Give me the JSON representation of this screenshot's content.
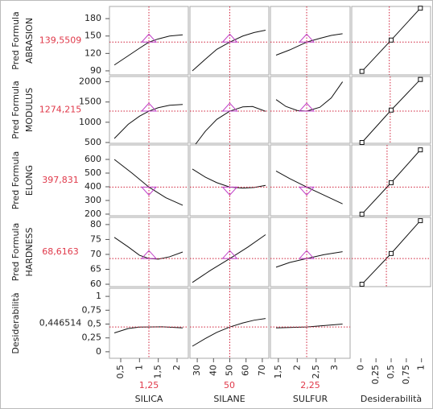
{
  "chart_data": {
    "type": "profiler",
    "factors": [
      {
        "name": "SILICA",
        "current": 1.25,
        "current_label": "1,25",
        "xlim": [
          0.2,
          2.3
        ],
        "xticks": [
          {
            "value": 0.5,
            "label": "0,5"
          },
          1,
          {
            "value": 1.5,
            "label": "1,5"
          },
          2
        ]
      },
      {
        "name": "SILANE",
        "current": 50,
        "xlim": [
          25.5,
          74
        ],
        "xticks": [
          30,
          40,
          50,
          60,
          70
        ]
      },
      {
        "name": "SULFUR",
        "current": 2.25,
        "current_label": "2,25",
        "xlim": [
          1.29,
          3.4
        ],
        "xticks": [
          {
            "value": 1.5,
            "label": "1,5"
          },
          2,
          {
            "value": 2.5,
            "label": "2,5"
          },
          3
        ]
      }
    ],
    "desirability_axis": {
      "name": "Desiderabilità",
      "xlim": [
        -0.15,
        1.15
      ],
      "xticks": [
        0,
        {
          "value": 0.25,
          "label": "0,25"
        },
        {
          "value": 0.5,
          "label": "0,5"
        },
        {
          "value": 0.75,
          "label": "0,75"
        },
        1
      ]
    },
    "responses": [
      {
        "name_lines": [
          "Pred Formula",
          "ABRASION"
        ],
        "current": 139.5509,
        "current_label": "139,5509",
        "marker": "triangle-up",
        "ylim": [
          83,
          201
        ],
        "yticks": [
          90,
          120,
          150,
          180
        ],
        "curves": [
          {
            "x": [
              0.33,
              0.7,
              1.0,
              1.25,
              1.5,
              1.8,
              2.15
            ],
            "y": [
              100,
              116,
              129,
              139.5,
              145,
              150,
              152
            ]
          },
          {
            "x": [
              27,
              35,
              42,
              50,
              58,
              65,
              72
            ],
            "y": [
              90,
              110,
              127,
              139.5,
              150,
              156,
              160
            ]
          },
          {
            "x": [
              1.44,
              1.8,
              2.25,
              2.6,
              2.9,
              3.2
            ],
            "y": [
              117,
              126,
              139.5,
              146,
              151,
              154
            ]
          }
        ],
        "desirability": {
          "x": [
            0.0183,
            0.5,
            0.9819
          ],
          "y": [
            89,
            143,
            198
          ]
        }
      },
      {
        "name_lines": [
          "Pred Formula",
          "MODULUS"
        ],
        "current": 1274.215,
        "current_label": "1274,215",
        "marker": "triangle-up",
        "ylim": [
          480,
          2130
        ],
        "yticks": [
          500,
          1000,
          1500,
          2000
        ],
        "curves": [
          {
            "x": [
              0.33,
              0.7,
              1.0,
              1.25,
              1.5,
              1.8,
              2.15
            ],
            "y": [
              600,
              950,
              1150,
              1274,
              1360,
              1420,
              1440
            ]
          },
          {
            "x": [
              29,
              35,
              42,
              50,
              58,
              64,
              72
            ],
            "y": [
              460,
              780,
              1070,
              1274,
              1380,
              1390,
              1270
            ]
          },
          {
            "x": [
              1.44,
              1.7,
              2.0,
              2.25,
              2.6,
              2.9,
              3.2
            ],
            "y": [
              1560,
              1390,
              1290,
              1274,
              1370,
              1600,
              2000
            ]
          }
        ],
        "desirability": {
          "x": [
            0.0183,
            0.5,
            0.9819
          ],
          "y": [
            500,
            1300,
            2057
          ]
        }
      },
      {
        "name_lines": [
          "Pred Formula",
          "ELONG"
        ],
        "current": 397.831,
        "current_label": "397,831",
        "marker": "triangle-down",
        "ylim": [
          188,
          706
        ],
        "yticks": [
          200,
          300,
          400,
          500,
          600
        ],
        "curves": [
          {
            "x": [
              0.33,
              0.8,
              1.25,
              1.7,
              2.15
            ],
            "y": [
              600,
              500,
              398,
              320,
              265
            ]
          },
          {
            "x": [
              27,
              35,
              42,
              50,
              58,
              65,
              72
            ],
            "y": [
              530,
              470,
              430,
              398,
              390,
              395,
              410
            ]
          },
          {
            "x": [
              1.44,
              1.8,
              2.25,
              2.7,
              3.2
            ],
            "y": [
              515,
              460,
              398,
              340,
              275
            ]
          }
        ],
        "desirability": {
          "x": [
            0.0183,
            0.5,
            0.9819
          ],
          "y": [
            200,
            430,
            670
          ]
        }
      },
      {
        "name_lines": [
          "Pred Formula",
          "HARDNESS"
        ],
        "current": 68.6163,
        "current_label": "68,6163",
        "marker": "triangle-up",
        "ylim": [
          59.2,
          82.4
        ],
        "yticks": [
          60,
          65,
          70,
          75,
          80
        ],
        "curves": [
          {
            "x": [
              0.33,
              0.7,
              1.0,
              1.25,
              1.5,
              1.8,
              2.15
            ],
            "y": [
              75.7,
              72.5,
              69.7,
              68.6,
              68.4,
              69.2,
              70.8
            ]
          },
          {
            "x": [
              27,
              38,
              50,
              61,
              72
            ],
            "y": [
              60.6,
              64.6,
              68.6,
              72.4,
              76.6
            ]
          },
          {
            "x": [
              1.44,
              1.8,
              2.25,
              2.7,
              3.2
            ],
            "y": [
              65.7,
              67.3,
              68.6,
              69.9,
              70.9
            ]
          }
        ],
        "desirability": {
          "x": [
            0.0183,
            0.5,
            0.9819
          ],
          "y": [
            60,
            70.3,
            81.3
          ]
        }
      },
      {
        "name_lines": [
          "Desiderabilità"
        ],
        "current": 0.446514,
        "current_label": "0,446514",
        "ylim": [
          -0.118,
          1.147
        ],
        "yticks": [
          0,
          {
            "value": 0.25,
            "label": "0,25"
          },
          {
            "value": 0.5,
            "label": "0,5"
          },
          {
            "value": 0.75,
            "label": "0,75"
          },
          1
        ],
        "curves": [
          {
            "x": [
              0.33,
              0.7,
              1.0,
              1.25,
              1.6,
              2.15
            ],
            "y": [
              0.34,
              0.42,
              0.445,
              0.4465,
              0.45,
              0.43
            ]
          },
          {
            "x": [
              27,
              35,
              42,
              50,
              58,
              65,
              72
            ],
            "y": [
              0.1,
              0.24,
              0.35,
              0.4465,
              0.52,
              0.57,
              0.6
            ]
          },
          {
            "x": [
              1.44,
              2.25,
              3.2
            ],
            "y": [
              0.43,
              0.4465,
              0.5
            ]
          }
        ]
      }
    ]
  }
}
